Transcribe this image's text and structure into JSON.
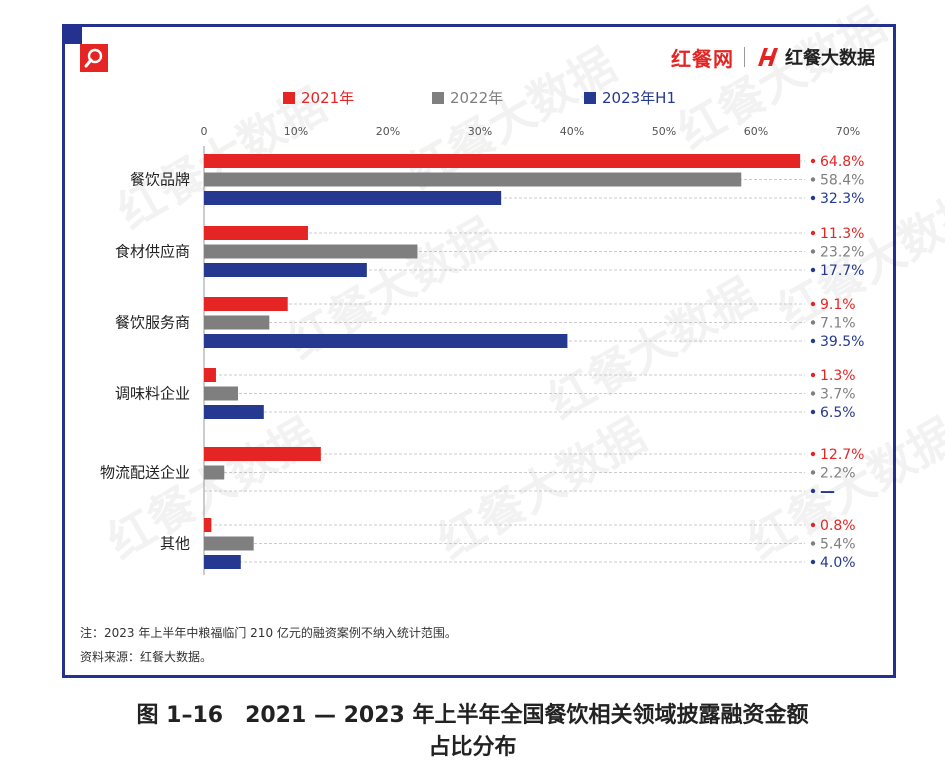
{
  "brand": {
    "site_name": "红餐网",
    "data_name": "红餐大数据"
  },
  "watermark": "红餐大数据",
  "chart_data": {
    "type": "bar",
    "orientation": "horizontal",
    "categories": [
      "餐饮品牌",
      "食材供应商",
      "餐饮服务商",
      "调味料企业",
      "物流配送企业",
      "其他"
    ],
    "series": [
      {
        "name": "2021年",
        "color": "#e42524",
        "values": [
          64.8,
          11.3,
          9.1,
          1.3,
          12.7,
          0.8
        ],
        "labels": [
          "64.8%",
          "11.3%",
          "9.1%",
          "1.3%",
          "12.7%",
          "0.8%"
        ]
      },
      {
        "name": "2022年",
        "color": "#7f7f7f",
        "values": [
          58.4,
          23.2,
          7.1,
          3.7,
          2.2,
          5.4
        ],
        "labels": [
          "58.4%",
          "23.2%",
          "7.1%",
          "3.7%",
          "2.2%",
          "5.4%"
        ]
      },
      {
        "name": "2023年H1",
        "color": "#24398f",
        "values": [
          32.3,
          17.7,
          39.5,
          6.5,
          null,
          4.0
        ],
        "labels": [
          "32.3%",
          "17.7%",
          "39.5%",
          "6.5%",
          "—",
          "4.0%"
        ]
      }
    ],
    "xlim": [
      0,
      70
    ],
    "xticks": [
      "0",
      "10%",
      "20%",
      "30%",
      "40%",
      "50%",
      "60%",
      "70%"
    ],
    "legend_position": "top",
    "grid": false
  },
  "notes": {
    "note": "注：2023 年上半年中粮福临门 210 亿元的融资案例不纳入统计范围。",
    "source": "资料来源：红餐大数据。"
  },
  "caption": {
    "line1": "图 1–16　2021 — 2023 年上半年全国餐饮相关领域披露融资金额",
    "line2": "占比分布"
  }
}
